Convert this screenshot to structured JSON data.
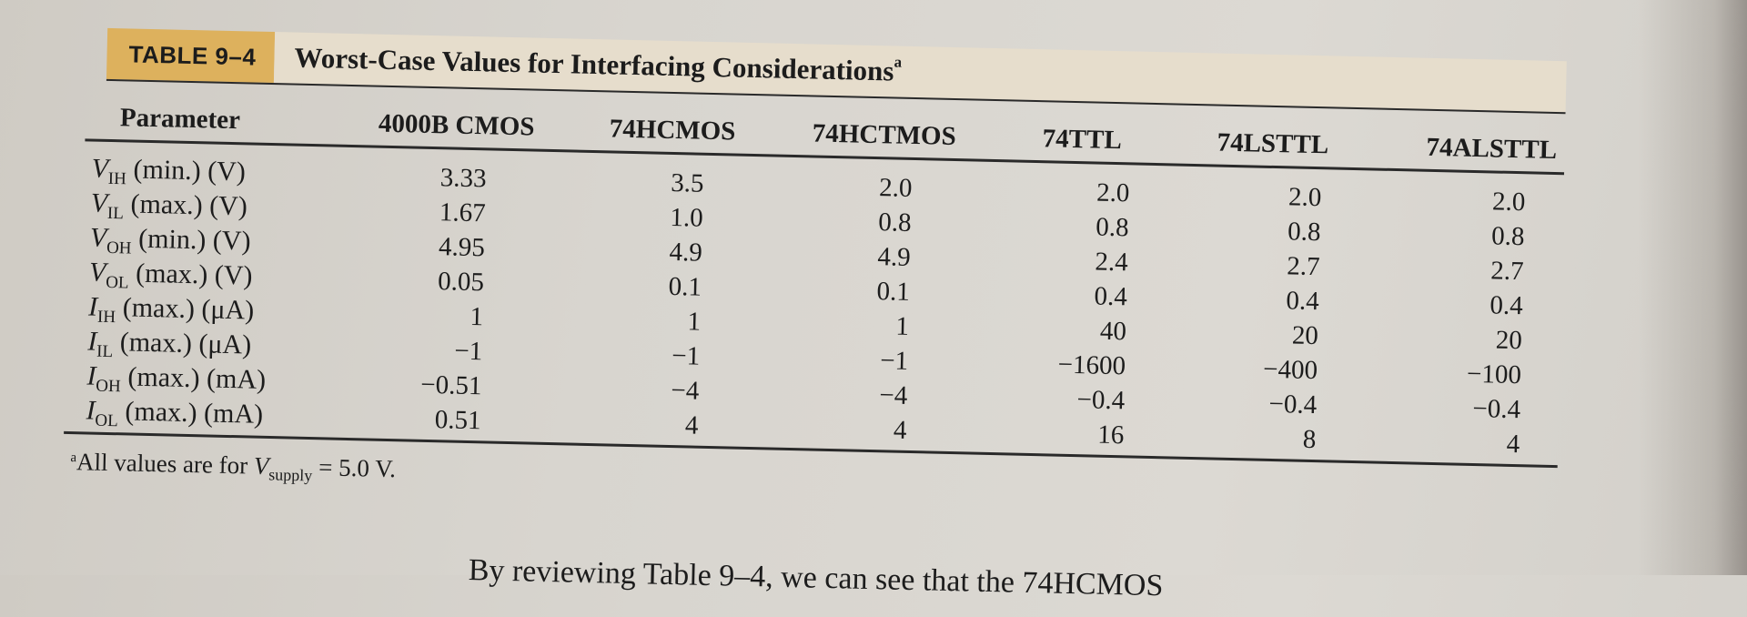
{
  "table": {
    "label": "TABLE 9–4",
    "title": "Worst-Case Values for Interfacing Considerations",
    "title_footnote_mark": "a",
    "param_header": "Parameter",
    "columns": [
      "4000B CMOS",
      "74HCMOS",
      "74HCTMOS",
      "74TTL",
      "74LSTTL",
      "74ALSTTL"
    ],
    "rows": [
      {
        "sym": "V",
        "sub": "IH",
        "rest": " (min.) (V)",
        "values": [
          "3.33",
          "3.5",
          "2.0",
          "2.0",
          "2.0",
          "2.0"
        ]
      },
      {
        "sym": "V",
        "sub": "IL",
        "rest": " (max.) (V)",
        "values": [
          "1.67",
          "1.0",
          "0.8",
          "0.8",
          "0.8",
          "0.8"
        ]
      },
      {
        "sym": "V",
        "sub": "OH",
        "rest": " (min.) (V)",
        "values": [
          "4.95",
          "4.9",
          "4.9",
          "2.4",
          "2.7",
          "2.7"
        ]
      },
      {
        "sym": "V",
        "sub": "OL",
        "rest": " (max.) (V)",
        "values": [
          "0.05",
          "0.1",
          "0.1",
          "0.4",
          "0.4",
          "0.4"
        ]
      },
      {
        "sym": "I",
        "sub": "IH",
        "rest": " (max.) (μA)",
        "values": [
          "1",
          "1",
          "1",
          "40",
          "20",
          "20"
        ]
      },
      {
        "sym": "I",
        "sub": "IL",
        "rest": " (max.) (μA)",
        "values": [
          "−1",
          "−1",
          "−1",
          "−1600",
          "−400",
          "−100"
        ]
      },
      {
        "sym": "I",
        "sub": "OH",
        "rest": " (max.) (mA)",
        "values": [
          "−0.51",
          "−4",
          "−4",
          "−0.4",
          "−0.4",
          "−0.4"
        ]
      },
      {
        "sym": "I",
        "sub": "OL",
        "rest": " (max.) (mA)",
        "values": [
          "0.51",
          "4",
          "4",
          "16",
          "8",
          "4"
        ]
      }
    ],
    "footnote": {
      "mark": "a",
      "prefix": "All values are for ",
      "sym": "V",
      "sub": "supply",
      "suffix": " = 5.0 V."
    }
  },
  "body_text": "By reviewing Table 9–4, we can see that the 74HCMOS"
}
